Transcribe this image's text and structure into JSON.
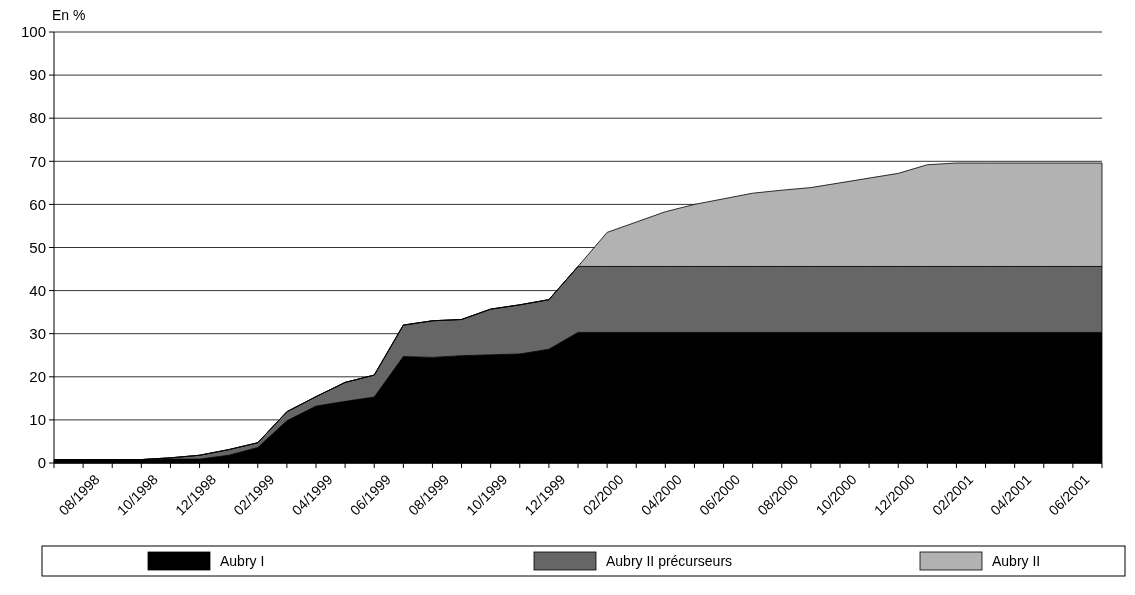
{
  "chart_data": {
    "type": "area",
    "stacked": true,
    "ylabel": "En %",
    "categories": [
      null,
      "08/1998",
      null,
      "10/1998",
      null,
      "12/1998",
      null,
      "02/1999",
      null,
      "04/1999",
      null,
      "06/1999",
      null,
      "08/1999",
      null,
      "10/1999",
      null,
      "12/1999",
      null,
      "02/2000",
      null,
      "04/2000",
      null,
      "06/2000",
      null,
      "08/2000",
      null,
      "10/2000",
      null,
      "12/2000",
      null,
      "02/2001",
      null,
      "04/2001",
      null,
      "06/2001",
      null
    ],
    "series": [
      {
        "name": "Aubry I",
        "color": "#000000",
        "values": [
          0.8,
          0.8,
          0.8,
          0.8,
          0.9,
          0.9,
          1.8,
          3.6,
          9.8,
          13.2,
          14.3,
          15.3,
          24.7,
          24.5,
          24.9,
          25.1,
          25.3,
          26.4,
          30.3,
          30.3,
          30.3,
          30.3,
          30.3,
          30.3,
          30.3,
          30.3,
          30.3,
          30.3,
          30.3,
          30.3,
          30.3,
          30.3,
          30.3,
          30.3,
          30.3,
          30.3,
          30.3
        ]
      },
      {
        "name": "Aubry II précurseurs",
        "color": "#666666",
        "values": [
          0,
          0,
          0,
          0,
          0.3,
          0.9,
          1.3,
          1.1,
          2.1,
          2.2,
          4.4,
          5.1,
          7.3,
          8.5,
          8.4,
          10.6,
          11.4,
          11.5,
          15.3,
          15.3,
          15.3,
          15.3,
          15.3,
          15.3,
          15.3,
          15.3,
          15.3,
          15.3,
          15.3,
          15.3,
          15.3,
          15.3,
          15.3,
          15.3,
          15.3,
          15.3,
          15.3
        ]
      },
      {
        "name": "Aubry II",
        "color": "#b2b2b2",
        "values": [
          0,
          0,
          0,
          0,
          0,
          0,
          0,
          0,
          0,
          0,
          0,
          0,
          0,
          0,
          0,
          0,
          0,
          0,
          0,
          7.9,
          10.3,
          12.7,
          14.4,
          15.7,
          17.0,
          17.7,
          18.3,
          19.4,
          20.5,
          21.6,
          23.6,
          24.0,
          24.0,
          24.0,
          24.0,
          24.0,
          24.0
        ]
      }
    ],
    "ylim": [
      0,
      100
    ],
    "yticks": [
      0,
      10,
      20,
      30,
      40,
      50,
      60,
      70,
      80,
      90,
      100
    ],
    "grid": "y",
    "legend": "bottom"
  }
}
